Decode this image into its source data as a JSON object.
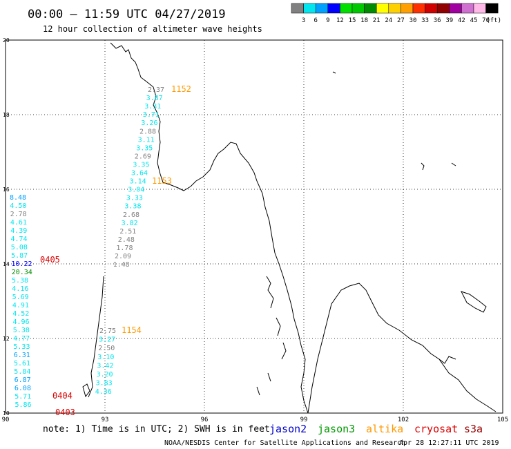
{
  "header": {
    "time_range": "00:00 – 11:59 UTC 04/27/2019",
    "subtitle": "12 hour collection of altimeter wave heights"
  },
  "legend": {
    "unit": "(ft)",
    "bins": [
      {
        "label": "3",
        "color": "#808080"
      },
      {
        "label": "6",
        "color": "#00e5ee"
      },
      {
        "label": "9",
        "color": "#00a0ff"
      },
      {
        "label": "12",
        "color": "#0000ff"
      },
      {
        "label": "15",
        "color": "#00e000"
      },
      {
        "label": "18",
        "color": "#00c800"
      },
      {
        "label": "21",
        "color": "#008c00"
      },
      {
        "label": "24",
        "color": "#ffff00"
      },
      {
        "label": "27",
        "color": "#ffd000"
      },
      {
        "label": "30",
        "color": "#ffa000"
      },
      {
        "label": "33",
        "color": "#ff3000"
      },
      {
        "label": "36",
        "color": "#d00000"
      },
      {
        "label": "39",
        "color": "#900000"
      },
      {
        "label": "42",
        "color": "#a000a0"
      },
      {
        "label": "45",
        "color": "#d070d0"
      },
      {
        "label": "70",
        "color": "#ffb8e8"
      },
      {
        "label": "",
        "color": "#000000"
      }
    ]
  },
  "axes": {
    "lat_labels": [
      "20",
      "18",
      "16",
      "14",
      "12",
      "10"
    ],
    "lon_labels": [
      "90",
      "93",
      "96",
      "99",
      "102",
      "105"
    ]
  },
  "satellites": [
    {
      "name": "jason2",
      "color": "#0000cc"
    },
    {
      "name": "jason3",
      "color": "#009900"
    },
    {
      "name": "altika",
      "color": "#ff9900"
    },
    {
      "name": "cryosat",
      "color": "#dd0000"
    },
    {
      "name": "s3a",
      "color": "#990000"
    }
  ],
  "footer": {
    "note": "note: 1) Time is in UTC; 2) SWH is in feet",
    "credit": "NOAA/NESDIS Center for Satellite Applications and Research",
    "timestamp": "Apr 28 12:27:11 UTC 2019"
  },
  "pass_times": [
    {
      "label": "1152",
      "color": "#ff9900"
    },
    {
      "label": "1153",
      "color": "#ff9900"
    },
    {
      "label": "1154",
      "color": "#ff9900"
    },
    {
      "label": "0405",
      "color": "#dd0000"
    },
    {
      "label": "0404",
      "color": "#dd0000"
    },
    {
      "label": "0403",
      "color": "#dd0000"
    }
  ],
  "tracks": [
    {
      "name": "altika-track",
      "points": [
        {
          "v": "2.37",
          "c": "#808080"
        },
        {
          "v": "3.87",
          "c": "#00e5ee"
        },
        {
          "v": "3.31",
          "c": "#00e5ee"
        },
        {
          "v": "3.71",
          "c": "#00e5ee"
        },
        {
          "v": "3.26",
          "c": "#00e5ee"
        },
        {
          "v": "2.88",
          "c": "#808080"
        },
        {
          "v": "3.11",
          "c": "#00e5ee"
        },
        {
          "v": "3.35",
          "c": "#00e5ee"
        },
        {
          "v": "2.69",
          "c": "#808080"
        },
        {
          "v": "3.35",
          "c": "#00e5ee"
        },
        {
          "v": "3.64",
          "c": "#00e5ee"
        },
        {
          "v": "3.14",
          "c": "#00e5ee"
        },
        {
          "v": "3.04",
          "c": "#00e5ee"
        },
        {
          "v": "3.33",
          "c": "#00e5ee"
        },
        {
          "v": "3.38",
          "c": "#00e5ee"
        },
        {
          "v": "2.68",
          "c": "#808080"
        },
        {
          "v": "3.82",
          "c": "#00e5ee"
        },
        {
          "v": "2.51",
          "c": "#808080"
        },
        {
          "v": "2.48",
          "c": "#808080"
        },
        {
          "v": "1.78",
          "c": "#808080"
        },
        {
          "v": "2.09",
          "c": "#808080"
        },
        {
          "v": "1.48",
          "c": "#808080"
        }
      ]
    },
    {
      "name": "altika-track-south",
      "points": [
        {
          "v": "2.75",
          "c": "#808080"
        },
        {
          "v": "3.27",
          "c": "#00e5ee"
        },
        {
          "v": "2.50",
          "c": "#808080"
        },
        {
          "v": "3.10",
          "c": "#00e5ee"
        },
        {
          "v": "3.42",
          "c": "#00e5ee"
        },
        {
          "v": "3.20",
          "c": "#00e5ee"
        },
        {
          "v": "3.83",
          "c": "#00e5ee"
        },
        {
          "v": "4.36",
          "c": "#00e5ee"
        }
      ]
    },
    {
      "name": "cryosat-track",
      "points": [
        {
          "v": "8.48",
          "c": "#00a0ff"
        },
        {
          "v": "4.50",
          "c": "#00e5ee"
        },
        {
          "v": "2.78",
          "c": "#808080"
        },
        {
          "v": "4.61",
          "c": "#00e5ee"
        },
        {
          "v": "4.39",
          "c": "#00e5ee"
        },
        {
          "v": "4.74",
          "c": "#00e5ee"
        },
        {
          "v": "5.08",
          "c": "#00e5ee"
        },
        {
          "v": "5.87",
          "c": "#00e5ee"
        },
        {
          "v": "10.22",
          "c": "#0000ff"
        },
        {
          "v": "20.34",
          "c": "#008c00"
        },
        {
          "v": "5.38",
          "c": "#00e5ee"
        },
        {
          "v": "4.16",
          "c": "#00e5ee"
        },
        {
          "v": "5.69",
          "c": "#00e5ee"
        },
        {
          "v": "4.91",
          "c": "#00e5ee"
        },
        {
          "v": "4.52",
          "c": "#00e5ee"
        },
        {
          "v": "4.96",
          "c": "#00e5ee"
        },
        {
          "v": "5.38",
          "c": "#00e5ee"
        },
        {
          "v": "4.77",
          "c": "#00e5ee"
        },
        {
          "v": "5.33",
          "c": "#00e5ee"
        },
        {
          "v": "6.31",
          "c": "#00a0ff"
        },
        {
          "v": "5.61",
          "c": "#00e5ee"
        },
        {
          "v": "5.84",
          "c": "#00e5ee"
        },
        {
          "v": "6.87",
          "c": "#00a0ff"
        },
        {
          "v": "6.08",
          "c": "#00a0ff"
        },
        {
          "v": "5.71",
          "c": "#00e5ee"
        },
        {
          "v": "5.86",
          "c": "#00e5ee"
        }
      ]
    }
  ]
}
